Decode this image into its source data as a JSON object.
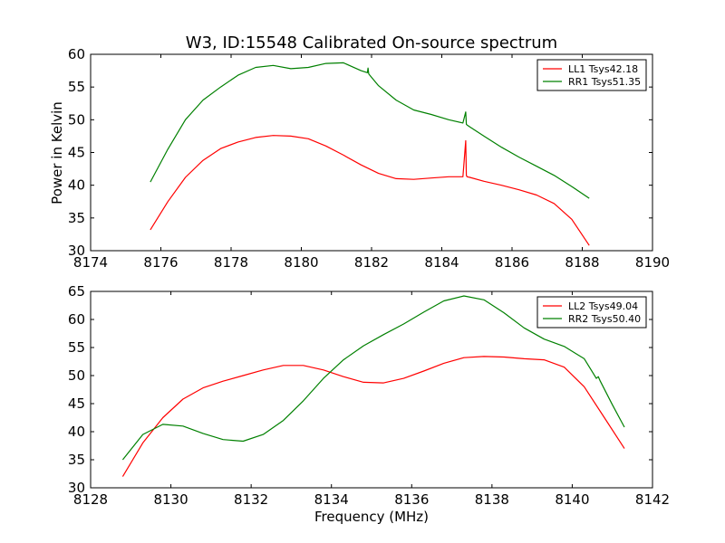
{
  "chart_data": [
    {
      "type": "line",
      "title": "W3, ID:15548 Calibrated On-source spectrum",
      "xlabel": "",
      "ylabel": "Power in Kelvin",
      "xlim": [
        8174,
        8190
      ],
      "ylim": [
        30,
        60
      ],
      "xticks": [
        8174,
        8176,
        8178,
        8180,
        8182,
        8184,
        8186,
        8188,
        8190
      ],
      "yticks": [
        30,
        35,
        40,
        45,
        50,
        55,
        60
      ],
      "legend": "top-right",
      "grid": false,
      "series": [
        {
          "name": "LL1 Tsys42.18",
          "color": "#ff0000",
          "x": [
            8175.7,
            8176.2,
            8176.7,
            8177.2,
            8177.7,
            8178.2,
            8178.7,
            8179.2,
            8179.7,
            8180.2,
            8180.7,
            8181.2,
            8181.7,
            8182.2,
            8182.7,
            8183.2,
            8183.7,
            8184.2,
            8184.6,
            8184.68,
            8184.7,
            8184.72,
            8184.8,
            8185.2,
            8185.7,
            8186.2,
            8186.7,
            8187.2,
            8187.7,
            8188.2
          ],
          "y": [
            33.2,
            37.5,
            41.2,
            43.8,
            45.6,
            46.6,
            47.3,
            47.6,
            47.5,
            47.1,
            46.0,
            44.6,
            43.1,
            41.8,
            41.0,
            40.9,
            41.1,
            41.3,
            41.3,
            46.8,
            41.5,
            41.3,
            41.2,
            40.6,
            40.0,
            39.3,
            38.5,
            37.2,
            34.8,
            30.8
          ]
        },
        {
          "name": "RR1 Tsys51.35",
          "color": "#008000",
          "x": [
            8175.7,
            8176.2,
            8176.7,
            8177.2,
            8177.7,
            8178.2,
            8178.7,
            8179.2,
            8179.7,
            8180.2,
            8180.7,
            8181.2,
            8181.7,
            8181.88,
            8181.9,
            8181.92,
            8182.2,
            8182.7,
            8183.2,
            8183.7,
            8184.2,
            8184.6,
            8184.68,
            8184.7,
            8184.72,
            8184.8,
            8185.2,
            8185.7,
            8186.2,
            8186.7,
            8187.2,
            8187.7,
            8188.2
          ],
          "y": [
            40.5,
            45.5,
            50.0,
            53.0,
            55.0,
            56.8,
            58.0,
            58.3,
            57.8,
            58.0,
            58.6,
            58.7,
            57.5,
            57.2,
            57.9,
            57.0,
            55.2,
            53.0,
            51.5,
            50.8,
            50.0,
            49.5,
            51.2,
            49.3,
            49.2,
            48.9,
            47.5,
            45.8,
            44.3,
            42.9,
            41.5,
            39.8,
            38.0
          ]
        }
      ]
    },
    {
      "type": "line",
      "title": "",
      "xlabel": "Frequency (MHz)",
      "ylabel": "",
      "xlim": [
        8128,
        8142
      ],
      "ylim": [
        30,
        65
      ],
      "xticks": [
        8128,
        8130,
        8132,
        8134,
        8136,
        8138,
        8140,
        8142
      ],
      "yticks": [
        30,
        35,
        40,
        45,
        50,
        55,
        60,
        65
      ],
      "legend": "top-right",
      "grid": false,
      "series": [
        {
          "name": "LL2 Tsys49.04",
          "color": "#ff0000",
          "x": [
            8128.8,
            8129.3,
            8129.8,
            8130.3,
            8130.8,
            8131.3,
            8131.8,
            8132.3,
            8132.8,
            8133.3,
            8133.8,
            8134.3,
            8134.8,
            8135.3,
            8135.8,
            8136.3,
            8136.8,
            8137.3,
            8137.8,
            8138.3,
            8138.8,
            8139.3,
            8139.8,
            8140.3,
            8140.8,
            8141.3
          ],
          "y": [
            32.0,
            38.0,
            42.5,
            45.8,
            47.8,
            49.0,
            50.0,
            51.0,
            51.8,
            51.8,
            51.0,
            49.8,
            48.8,
            48.7,
            49.5,
            50.8,
            52.2,
            53.2,
            53.4,
            53.3,
            53.0,
            52.8,
            51.5,
            48.0,
            42.5,
            37.0
          ]
        },
        {
          "name": "RR2 Tsys50.40",
          "color": "#008000",
          "x": [
            8128.8,
            8129.3,
            8129.8,
            8130.3,
            8130.8,
            8131.3,
            8131.8,
            8132.3,
            8132.8,
            8133.3,
            8133.8,
            8134.3,
            8134.8,
            8135.3,
            8135.8,
            8136.3,
            8136.8,
            8137.3,
            8137.8,
            8138.3,
            8138.8,
            8139.3,
            8139.8,
            8140.3,
            8140.6,
            8140.65,
            8140.7,
            8141.0,
            8141.3
          ],
          "y": [
            35.0,
            39.5,
            41.3,
            41.0,
            39.7,
            38.6,
            38.3,
            39.5,
            42.0,
            45.5,
            49.5,
            52.8,
            55.3,
            57.3,
            59.2,
            61.3,
            63.3,
            64.2,
            63.5,
            61.2,
            58.5,
            56.5,
            55.2,
            53.0,
            49.5,
            49.8,
            49.0,
            44.8,
            40.8
          ]
        }
      ]
    }
  ]
}
